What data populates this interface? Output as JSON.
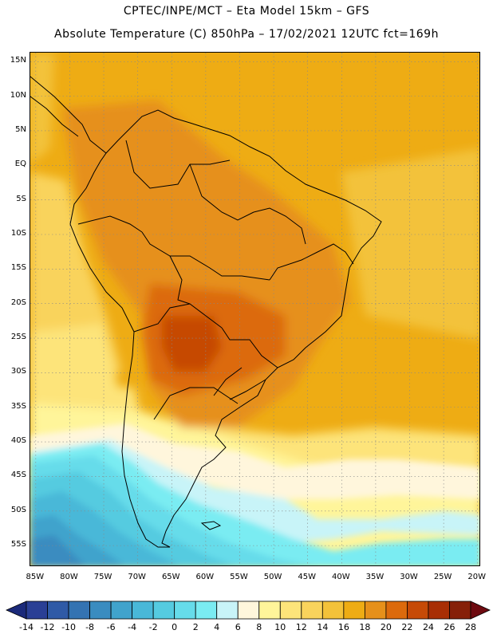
{
  "header": {
    "line1": "CPTEC/INPE/MCT –  Eta Model 15km – GFS",
    "line2": "Absolute Temperature (C) 850hPa – 17/02/2021 12UTC fct=169h"
  },
  "map": {
    "latitude_labels": [
      "15N",
      "10N",
      "5N",
      "EQ",
      "5S",
      "10S",
      "15S",
      "20S",
      "25S",
      "30S",
      "35S",
      "40S",
      "45S",
      "50S",
      "55S"
    ],
    "longitude_labels": [
      "85W",
      "80W",
      "75W",
      "70W",
      "65W",
      "60W",
      "55W",
      "50W",
      "45W",
      "40W",
      "35W",
      "30W",
      "25W",
      "20W"
    ],
    "latitudes": [
      15,
      10,
      5,
      0,
      -5,
      -10,
      -15,
      -20,
      -25,
      -30,
      -35,
      -40,
      -45,
      -50,
      -55
    ],
    "longitudes": [
      -85,
      -80,
      -75,
      -70,
      -65,
      -60,
      -55,
      -50,
      -45,
      -40,
      -35,
      -30,
      -25,
      -20
    ],
    "extent": {
      "lon_min": -85.8,
      "lon_max": -19.5,
      "lat_min": -58.1,
      "lat_max": 16.3
    }
  },
  "colorbar": {
    "labels": [
      "-14",
      "-12",
      "-10",
      "-8",
      "-6",
      "-4",
      "-2",
      "0",
      "2",
      "4",
      "6",
      "8",
      "10",
      "12",
      "14",
      "16",
      "18",
      "20",
      "22",
      "24",
      "26",
      "28"
    ],
    "colors": [
      "#2a3f95",
      "#2f5aa6",
      "#3473b2",
      "#3a8cc0",
      "#40a3cc",
      "#49b8d8",
      "#55cbe0",
      "#66dcea",
      "#7aecf2",
      "#c8f4f8",
      "#fff6dc",
      "#fff59a",
      "#fde47a",
      "#f9d35c",
      "#f3c23a",
      "#eeac14",
      "#e6901a",
      "#dc6a0c",
      "#c64a06",
      "#a82e04",
      "#862008"
    ],
    "under_color": "#1b2a7a",
    "over_color": "#6e0a10"
  }
}
